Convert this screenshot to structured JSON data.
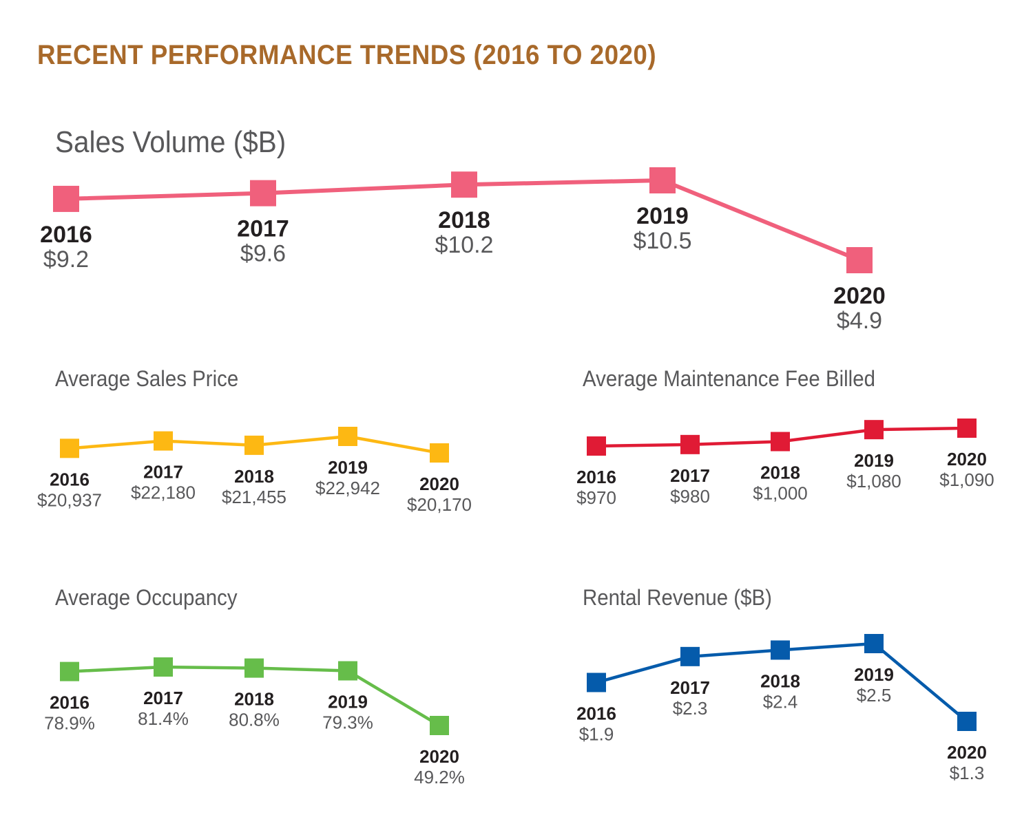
{
  "header": {
    "title": "RECENT PERFORMANCE TRENDS (2016 TO 2020)"
  },
  "colors": {
    "title": "#a8692a",
    "sales_volume": "#f0607c",
    "avg_sales_price": "#fdb813",
    "avg_maintenance_fee": "#e01b35",
    "avg_occupancy": "#66bd4a",
    "rental_revenue": "#055bab"
  },
  "chart_data": [
    {
      "id": "sales_volume",
      "type": "line",
      "title": "Sales Volume ($B)",
      "marker": "square",
      "x": [
        "2016",
        "2017",
        "2018",
        "2019",
        "2020"
      ],
      "values": [
        9.2,
        9.6,
        10.2,
        10.5,
        4.9
      ],
      "labels": [
        "$9.2",
        "$9.6",
        "$10.2",
        "$10.5",
        "$4.9"
      ],
      "xlabel": "",
      "ylabel": "",
      "grid": false,
      "axes": false
    },
    {
      "id": "avg_sales_price",
      "type": "line",
      "title": "Average Sales Price",
      "marker": "square",
      "x": [
        "2016",
        "2017",
        "2018",
        "2019",
        "2020"
      ],
      "values": [
        20937,
        22180,
        21455,
        22942,
        20170
      ],
      "labels": [
        "$20,937",
        "$22,180",
        "$21,455",
        "$22,942",
        "$20,170"
      ],
      "xlabel": "",
      "ylabel": "",
      "grid": false,
      "axes": false
    },
    {
      "id": "avg_maintenance_fee",
      "type": "line",
      "title": "Average Maintenance Fee Billed",
      "marker": "square",
      "x": [
        "2016",
        "2017",
        "2018",
        "2019",
        "2020"
      ],
      "values": [
        970,
        980,
        1000,
        1080,
        1090
      ],
      "labels": [
        "$970",
        "$980",
        "$1,000",
        "$1,080",
        "$1,090"
      ],
      "xlabel": "",
      "ylabel": "",
      "grid": false,
      "axes": false
    },
    {
      "id": "avg_occupancy",
      "type": "line",
      "title": "Average Occupancy",
      "marker": "square",
      "x": [
        "2016",
        "2017",
        "2018",
        "2019",
        "2020"
      ],
      "values": [
        78.9,
        81.4,
        80.8,
        79.3,
        49.2
      ],
      "labels": [
        "78.9%",
        "81.4%",
        "80.8%",
        "79.3%",
        "49.2%"
      ],
      "xlabel": "",
      "ylabel": "",
      "grid": false,
      "axes": false
    },
    {
      "id": "rental_revenue",
      "type": "line",
      "title": "Rental Revenue ($B)",
      "marker": "square",
      "x": [
        "2016",
        "2017",
        "2018",
        "2019",
        "2020"
      ],
      "values": [
        1.9,
        2.3,
        2.4,
        2.5,
        1.3
      ],
      "labels": [
        "$1.9",
        "$2.3",
        "$2.4",
        "$2.5",
        "$1.3"
      ],
      "xlabel": "",
      "ylabel": "",
      "grid": false,
      "axes": false
    }
  ]
}
